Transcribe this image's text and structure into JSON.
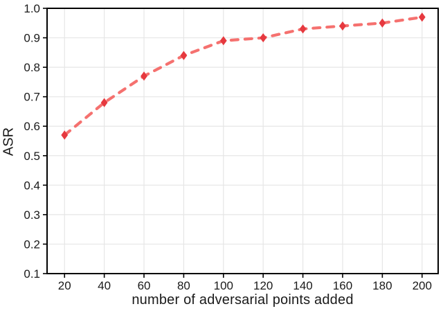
{
  "chart_data": {
    "type": "line",
    "title": "",
    "xlabel": "number of adversarial points added",
    "ylabel": "ASR",
    "x": [
      20,
      40,
      60,
      80,
      100,
      120,
      140,
      160,
      180,
      200
    ],
    "series": [
      {
        "name": "ASR",
        "values": [
          0.57,
          0.68,
          0.77,
          0.84,
          0.89,
          0.9,
          0.93,
          0.94,
          0.95,
          0.97
        ]
      }
    ],
    "xticks": [
      20,
      40,
      60,
      80,
      100,
      120,
      140,
      160,
      180,
      200
    ],
    "yticks": [
      "0.1",
      "0.2",
      "0.3",
      "0.4",
      "0.5",
      "0.6",
      "0.7",
      "0.8",
      "0.9",
      "1.0"
    ],
    "xlim": [
      11.2,
      208.1
    ],
    "ylim": [
      0.1,
      1.0
    ],
    "grid": true,
    "legend": "none",
    "line_style": "dashed",
    "marker": "thin-diamond",
    "colors": {
      "line": "#f4625f",
      "marker": "#e6393f",
      "grid": "#e6e6e6",
      "spine": "#000000",
      "tick": "#000000",
      "text": "#1a1a1a",
      "background": "#ffffff"
    }
  }
}
